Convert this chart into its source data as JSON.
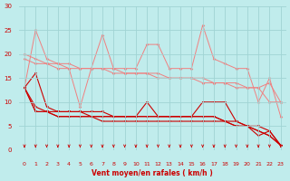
{
  "x": [
    0,
    1,
    2,
    3,
    4,
    5,
    6,
    7,
    8,
    9,
    10,
    11,
    12,
    13,
    14,
    15,
    16,
    17,
    18,
    19,
    20,
    21,
    22,
    23
  ],
  "line1": [
    13,
    25,
    19,
    18,
    17,
    9,
    17,
    24,
    17,
    17,
    17,
    22,
    22,
    17,
    17,
    17,
    26,
    19,
    18,
    17,
    17,
    10,
    15,
    7
  ],
  "line2": [
    20,
    19,
    18,
    18,
    18,
    17,
    17,
    17,
    17,
    16,
    16,
    16,
    16,
    15,
    15,
    15,
    15,
    14,
    14,
    14,
    13,
    13,
    14,
    10
  ],
  "line3": [
    19,
    18,
    18,
    17,
    17,
    17,
    17,
    17,
    16,
    16,
    16,
    16,
    15,
    15,
    15,
    15,
    14,
    14,
    14,
    13,
    13,
    13,
    10,
    10
  ],
  "line4": [
    13,
    16,
    9,
    8,
    8,
    8,
    8,
    8,
    7,
    7,
    7,
    10,
    7,
    7,
    7,
    7,
    10,
    10,
    10,
    6,
    5,
    3,
    4,
    1
  ],
  "line5": [
    13,
    9,
    8,
    8,
    8,
    8,
    7,
    6,
    6,
    6,
    6,
    6,
    6,
    6,
    6,
    6,
    6,
    6,
    6,
    5,
    5,
    5,
    4,
    1
  ],
  "line6": [
    13,
    8,
    8,
    7,
    7,
    7,
    7,
    7,
    7,
    7,
    7,
    7,
    7,
    7,
    7,
    7,
    7,
    7,
    6,
    6,
    5,
    4,
    3,
    1
  ],
  "line7": [
    13,
    8,
    8,
    7,
    7,
    7,
    7,
    7,
    7,
    7,
    7,
    7,
    7,
    7,
    7,
    7,
    7,
    7,
    6,
    5,
    5,
    4,
    3,
    1
  ],
  "color_light": "#f08080",
  "color_dark": "#cc0000",
  "bg_color": "#c0ecec",
  "grid_color": "#a0d4d4",
  "xlabel": "Vent moyen/en rafales ( km/h )",
  "ylim": [
    0,
    30
  ],
  "xlim": [
    0,
    23
  ],
  "yticks": [
    0,
    5,
    10,
    15,
    20,
    25,
    30
  ]
}
